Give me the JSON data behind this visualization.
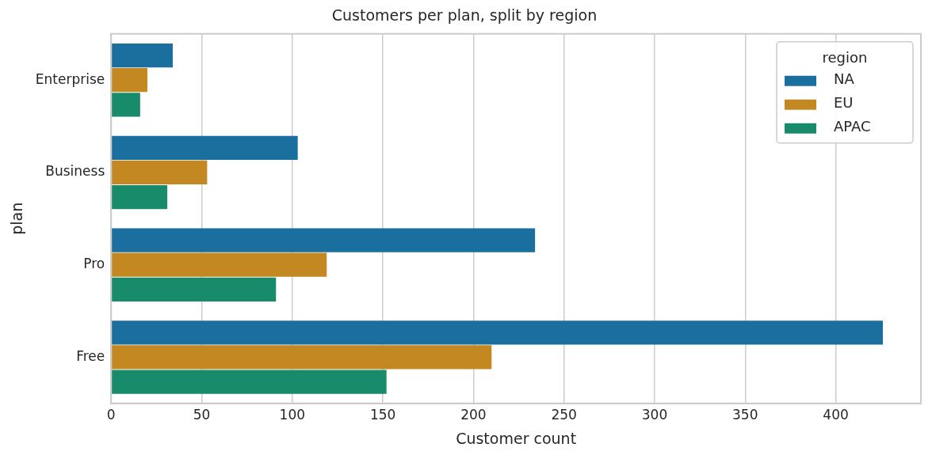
{
  "chart_data": {
    "type": "bar",
    "orientation": "horizontal",
    "title": "Customers per plan, split by region",
    "xlabel": "Customer count",
    "ylabel": "plan",
    "legend_title": "region",
    "legend": "top right",
    "grid": "x",
    "categories": [
      "Enterprise",
      "Business",
      "Pro",
      "Free"
    ],
    "series": [
      {
        "name": "NA",
        "color": "#1a6f9f",
        "values": [
          34,
          103,
          234,
          426
        ]
      },
      {
        "name": "EU",
        "color": "#c38821",
        "values": [
          20,
          53,
          119,
          210
        ]
      },
      {
        "name": "APAC",
        "color": "#188c6a",
        "values": [
          16,
          31,
          91,
          152
        ]
      }
    ],
    "xlim": [
      0,
      447
    ],
    "xticks": [
      0,
      50,
      100,
      150,
      200,
      250,
      300,
      350,
      400
    ]
  }
}
